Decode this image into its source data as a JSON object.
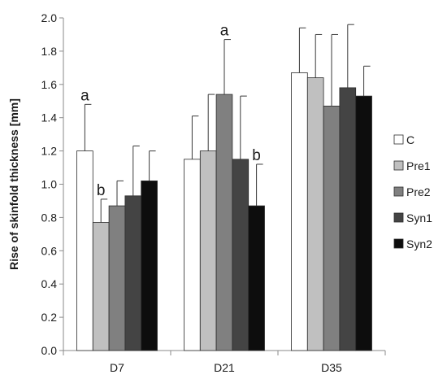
{
  "chart_data": {
    "type": "bar",
    "ylabel": "Rise of skinfold thickness [mm]",
    "ylim": [
      0,
      2.0
    ],
    "yticks": [
      "0.0",
      "0.2",
      "0.4",
      "0.6",
      "0.8",
      "1.0",
      "1.2",
      "1.4",
      "1.6",
      "1.8",
      "2.0"
    ],
    "grid": false,
    "legend_position": "right",
    "categories": [
      "D7",
      "D21",
      "D35"
    ],
    "series": [
      {
        "name": "C",
        "color": "#ffffff",
        "values": [
          1.2,
          1.15,
          1.67
        ],
        "errors": [
          0.28,
          0.26,
          0.27
        ]
      },
      {
        "name": "Pre1",
        "color": "#c0c0c0",
        "values": [
          0.77,
          1.2,
          1.64
        ],
        "errors": [
          0.14,
          0.34,
          0.26
        ]
      },
      {
        "name": "Pre2",
        "color": "#808080",
        "values": [
          0.87,
          1.54,
          1.47
        ],
        "errors": [
          0.15,
          0.33,
          0.43
        ]
      },
      {
        "name": "Syn1",
        "color": "#444444",
        "values": [
          0.93,
          1.15,
          1.58
        ],
        "errors": [
          0.3,
          0.38,
          0.38
        ]
      },
      {
        "name": "Syn2",
        "color": "#0d0d0d",
        "values": [
          1.02,
          0.87,
          1.53
        ],
        "errors": [
          0.18,
          0.25,
          0.18
        ]
      }
    ],
    "annotations": [
      {
        "text": "a",
        "category": "D7",
        "series": "C"
      },
      {
        "text": "b",
        "category": "D7",
        "series": "Pre1"
      },
      {
        "text": "a",
        "category": "D21",
        "series": "Pre2"
      },
      {
        "text": "b",
        "category": "D21",
        "series": "Syn2"
      }
    ]
  }
}
